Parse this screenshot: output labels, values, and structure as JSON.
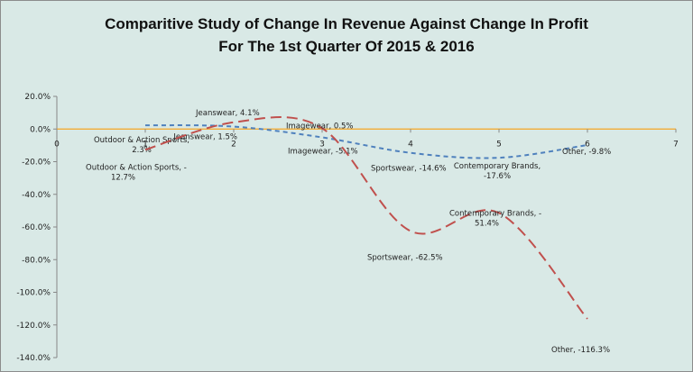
{
  "chart_data": {
    "type": "scatter",
    "title_lines": [
      "Comparitive Study of Change In Revenue Against Change In Profit",
      "For The 1st Quarter Of 2015 & 2016"
    ],
    "xlabel": "",
    "ylabel": "",
    "xlim": [
      0,
      7
    ],
    "ylim": [
      -140,
      20
    ],
    "x_ticks": [
      "0",
      "1",
      "2",
      "3",
      "4",
      "5",
      "6",
      "7"
    ],
    "y_ticks": [
      "20.0%",
      "0.0%",
      "-20.0%",
      "-40.0%",
      "-60.0%",
      "-80.0%",
      "-100.0%",
      "-120.0%",
      "-140.0%"
    ],
    "grid": false,
    "legend": "none",
    "series": [
      {
        "color": "#4f81bd",
        "dash": "dashed",
        "smooth": true,
        "x": [
          1,
          2,
          3,
          4,
          5,
          6
        ],
        "values": [
          2.3,
          1.5,
          -5.1,
          -14.6,
          -17.6,
          -9.8
        ],
        "labels": [
          [
            "Outdoor & Action Sports,",
            "2.3%"
          ],
          [
            "Jeanswear, 1.5%"
          ],
          [
            "Imagewear, -5.1%"
          ],
          [
            "Sportswear, -14.6%"
          ],
          [
            "Contemporary Brands,",
            "-17.6%"
          ],
          [
            "Other, -9.8%"
          ]
        ]
      },
      {
        "color": "#c0504d",
        "dash": "dashed",
        "smooth": true,
        "x": [
          1,
          2,
          3,
          4,
          5,
          6
        ],
        "values": [
          -12.7,
          4.1,
          0.5,
          -62.5,
          -51.4,
          -116.3
        ],
        "labels": [
          [
            "Outdoor & Action Sports, -",
            "12.7%"
          ],
          [
            "Jeanswear, 4.1%"
          ],
          [
            "Imagewear, 0.5%"
          ],
          [
            "Sportswear, -62.5%"
          ],
          [
            "Contemporary Brands, -",
            "51.4%"
          ],
          [
            "Other, -116.3%"
          ]
        ]
      }
    ],
    "reference_line": {
      "y": 0,
      "color": "#f5a623"
    }
  }
}
